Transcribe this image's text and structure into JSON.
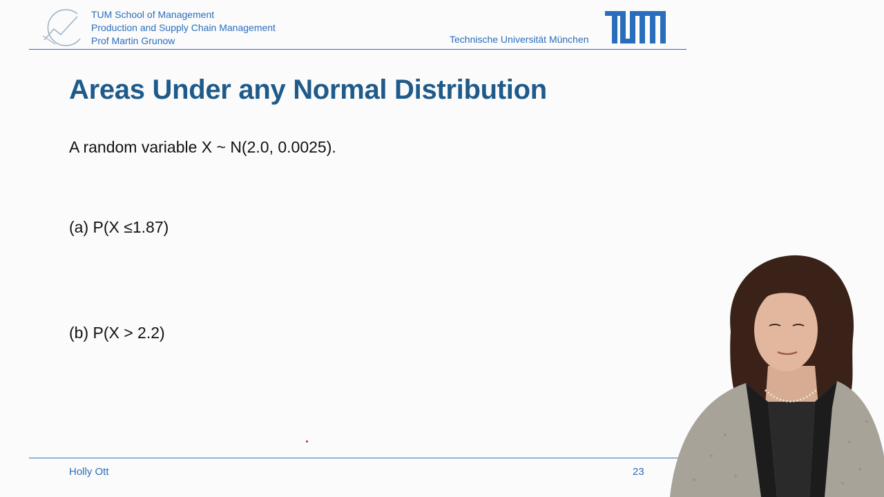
{
  "header": {
    "school": "TUM School of Management",
    "chair": "Production and Supply Chain Management",
    "professor": "Prof Martin Grunow",
    "university": "Technische Universität München"
  },
  "slide": {
    "title": "Areas Under any Normal Distribution",
    "intro": "A random variable X ~ N(2.0, 0.0025).",
    "part_a": "(a) P(X ≤1.87)",
    "part_b": "(b) P(X > 2.2)"
  },
  "footer": {
    "author": "Holly Ott",
    "page_number": "23"
  },
  "colors": {
    "brand_blue": "#2a6ebb",
    "title_blue": "#1e5a8a"
  }
}
